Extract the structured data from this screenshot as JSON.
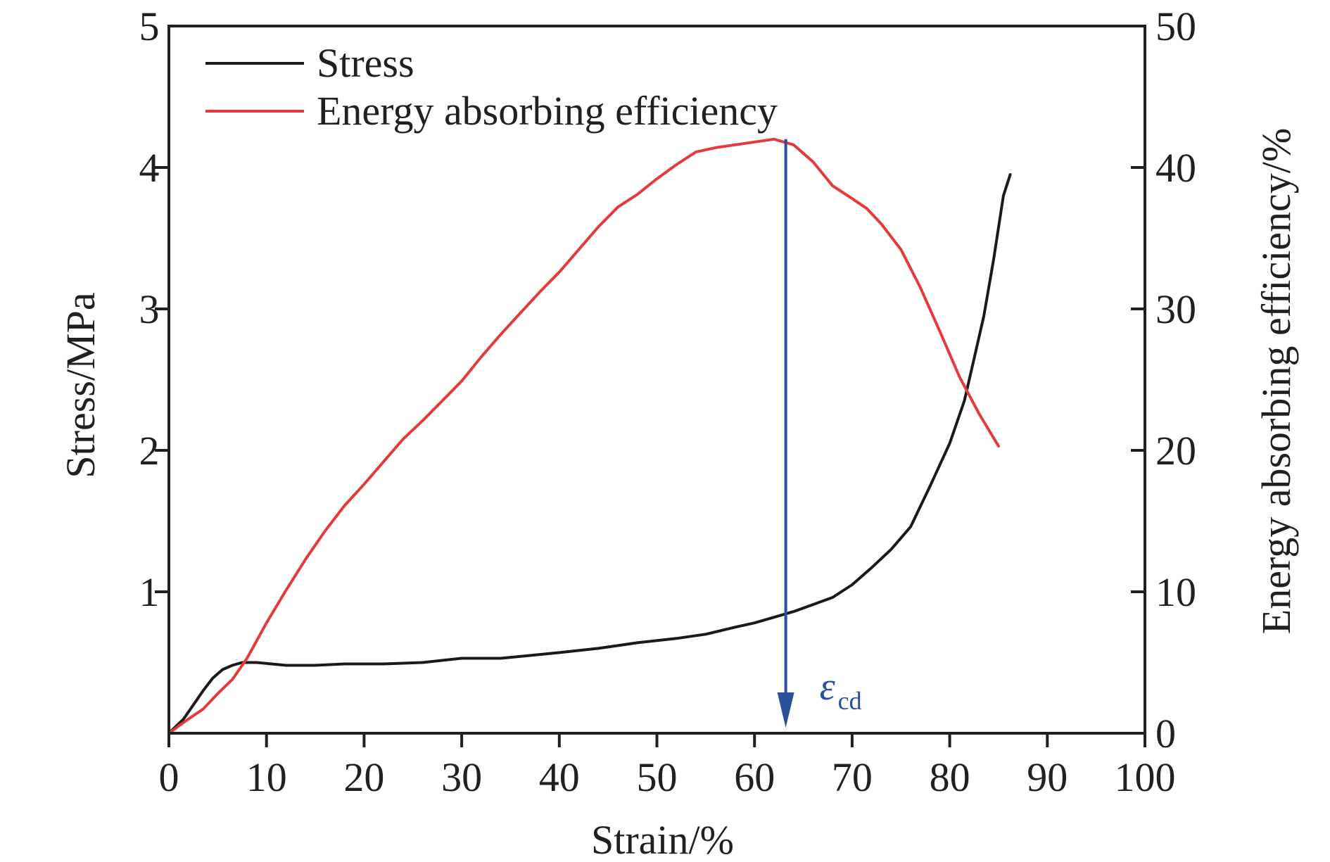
{
  "chart_data": {
    "type": "line",
    "xlabel": "Strain/%",
    "ylabel": "Stress/MPa",
    "y2label": "Energy absorbing efficiency/%",
    "xlim": [
      0,
      100
    ],
    "ylim": [
      0,
      5
    ],
    "y2lim": [
      0,
      50
    ],
    "x_ticks": [
      0,
      10,
      20,
      30,
      40,
      50,
      60,
      70,
      80,
      90,
      100
    ],
    "x_tick_labels": [
      "0",
      "10",
      "20",
      "30",
      "40",
      "50",
      "60",
      "70",
      "80",
      "90",
      "100"
    ],
    "y_ticks": [
      1,
      2,
      3,
      4,
      5
    ],
    "y_tick_labels": [
      "1",
      "2",
      "3",
      "4",
      "5"
    ],
    "y2_ticks": [
      0,
      10,
      20,
      30,
      40,
      50
    ],
    "y2_tick_labels": [
      "0",
      "10",
      "20",
      "30",
      "40",
      "50"
    ],
    "grid": false,
    "legend_position": "top-left",
    "series": [
      {
        "name": "Stress",
        "axis": "left",
        "color": "#1a1a1a",
        "x": [
          0,
          1.5,
          2.5,
          3.5,
          4.5,
          5.5,
          6.5,
          7.5,
          9,
          10.5,
          12,
          15,
          18,
          22,
          26,
          30,
          34,
          37,
          40,
          44,
          48,
          52,
          55,
          58,
          60,
          62,
          64,
          66,
          68,
          70,
          72,
          74,
          76,
          78,
          80,
          81.5,
          82.5,
          83.5,
          84.5,
          85.5,
          86.2
        ],
        "values": [
          0,
          0.1,
          0.2,
          0.3,
          0.39,
          0.45,
          0.48,
          0.5,
          0.5,
          0.49,
          0.48,
          0.48,
          0.49,
          0.49,
          0.5,
          0.53,
          0.53,
          0.55,
          0.57,
          0.6,
          0.64,
          0.67,
          0.7,
          0.75,
          0.78,
          0.82,
          0.86,
          0.91,
          0.96,
          1.05,
          1.17,
          1.3,
          1.46,
          1.75,
          2.05,
          2.35,
          2.65,
          2.95,
          3.35,
          3.8,
          3.95
        ]
      },
      {
        "name": "Energy absorbing efficiency",
        "axis": "right",
        "color": "#e33b3c",
        "x": [
          0,
          2,
          3.5,
          5,
          6.5,
          8,
          10,
          12,
          14,
          16,
          18,
          20,
          22,
          24,
          26,
          28,
          30,
          32,
          34,
          36,
          38,
          40,
          42,
          44,
          46,
          48,
          50,
          52,
          54,
          56,
          58,
          60,
          62,
          64,
          66,
          68,
          70,
          71.5,
          73,
          75,
          77,
          79,
          81,
          83,
          85
        ],
        "values": [
          0,
          1,
          1.7,
          2.8,
          3.8,
          5.3,
          7.8,
          10.1,
          12.3,
          14.3,
          16.1,
          17.6,
          19.2,
          20.8,
          22.1,
          23.5,
          24.9,
          26.6,
          28.2,
          29.7,
          31.2,
          32.6,
          34.2,
          35.8,
          37.2,
          38.1,
          39.2,
          40.2,
          41.1,
          41.4,
          41.6,
          41.8,
          42,
          41.6,
          40.4,
          38.7,
          37.8,
          37.1,
          36,
          34.2,
          31.5,
          28.4,
          25.2,
          22.6,
          20.3
        ]
      }
    ],
    "annotations": [
      {
        "type": "arrow",
        "x": 63.2,
        "from_y2": 42,
        "to_y2": 0.4,
        "color": "#2a4f9b",
        "label": "ε",
        "label_subscript": "cd"
      }
    ]
  }
}
